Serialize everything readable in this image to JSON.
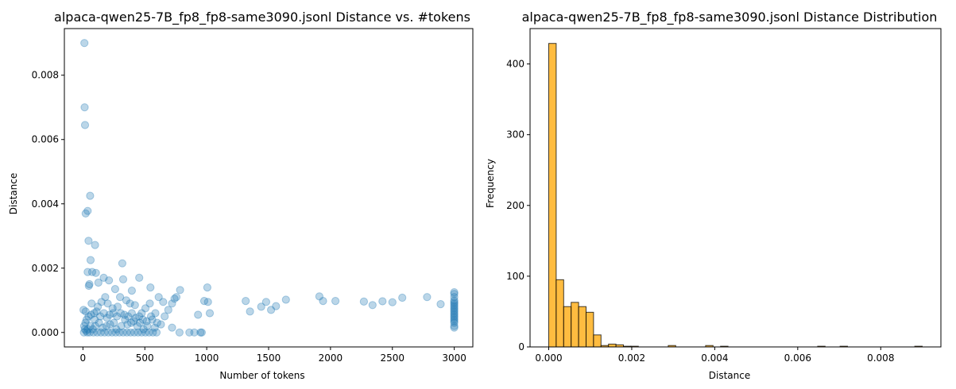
{
  "chart_data": [
    {
      "type": "scatter",
      "title": "alpaca-qwen25-7B_fp8_fp8-same3090.jsonl Distance vs. #tokens",
      "xlabel": "Number of tokens",
      "ylabel": "Distance",
      "xlim": [
        -150,
        3150
      ],
      "ylim": [
        -0.00045,
        0.00945
      ],
      "xticks": [
        0,
        500,
        1000,
        1500,
        2000,
        2500,
        3000
      ],
      "xtick_labels": [
        "0",
        "500",
        "1000",
        "1500",
        "2000",
        "2500",
        "3000"
      ],
      "yticks": [
        0,
        0.002,
        0.004,
        0.006,
        0.008
      ],
      "ytick_labels": [
        "0.000",
        "0.002",
        "0.004",
        "0.006",
        "0.008"
      ],
      "grid": false,
      "color": "#1f77b4",
      "points": [
        [
          12,
          0.009
        ],
        [
          14,
          0.007
        ],
        [
          17,
          0.00645
        ],
        [
          58,
          0.00425
        ],
        [
          22,
          0.0037
        ],
        [
          38,
          0.00378
        ],
        [
          45,
          0.00285
        ],
        [
          98,
          0.00272
        ],
        [
          62,
          0.00225
        ],
        [
          318,
          0.00215
        ],
        [
          38,
          0.00188
        ],
        [
          75,
          0.00188
        ],
        [
          105,
          0.00185
        ],
        [
          455,
          0.0017
        ],
        [
          168,
          0.0017
        ],
        [
          125,
          0.00155
        ],
        [
          325,
          0.00165
        ],
        [
          545,
          0.0014
        ],
        [
          1005,
          0.0014
        ],
        [
          210,
          0.00162
        ],
        [
          5,
          0.0007
        ],
        [
          22,
          0.00065
        ],
        [
          48,
          0.00145
        ],
        [
          52,
          0.0015
        ],
        [
          260,
          0.00135
        ],
        [
          395,
          0.0013
        ],
        [
          785,
          0.00132
        ],
        [
          755,
          0.0011
        ],
        [
          1010,
          0.00095
        ],
        [
          1025,
          0.0006
        ],
        [
          980,
          0.00098
        ],
        [
          612,
          0.0011
        ],
        [
          648,
          0.00095
        ],
        [
          720,
          0.0009
        ],
        [
          690,
          0.0007
        ],
        [
          740,
          0.00105
        ],
        [
          930,
          0.00055
        ],
        [
          1315,
          0.00098
        ],
        [
          1350,
          0.00065
        ],
        [
          1440,
          0.0008
        ],
        [
          1480,
          0.00095
        ],
        [
          1520,
          0.0007
        ],
        [
          1560,
          0.00082
        ],
        [
          1640,
          0.00102
        ],
        [
          1910,
          0.00112
        ],
        [
          1940,
          0.00098
        ],
        [
          2040,
          0.00098
        ],
        [
          2270,
          0.00096
        ],
        [
          2340,
          0.00085
        ],
        [
          2420,
          0.00097
        ],
        [
          2500,
          0.00094
        ],
        [
          2580,
          0.00108
        ],
        [
          2780,
          0.0011
        ],
        [
          2890,
          0.00088
        ],
        [
          720,
          0.00015
        ],
        [
          780,
          0.0
        ],
        [
          860,
          0.0
        ],
        [
          900,
          0.0
        ],
        [
          960,
          0.0
        ],
        [
          950,
          0.0
        ],
        [
          630,
          0.00025
        ],
        [
          540,
          0.0009
        ],
        [
          505,
          0.00075
        ],
        [
          475,
          0.0006
        ],
        [
          420,
          0.00085
        ],
        [
          380,
          0.0009
        ],
        [
          350,
          0.001
        ],
        [
          300,
          0.0011
        ],
        [
          280,
          0.0008
        ],
        [
          240,
          0.00075
        ],
        [
          200,
          0.0009
        ],
        [
          180,
          0.0011
        ],
        [
          150,
          0.00095
        ],
        [
          120,
          0.0008
        ],
        [
          90,
          0.0006
        ],
        [
          70,
          0.0009
        ],
        [
          30,
          0.0004
        ],
        [
          20,
          0.0003
        ],
        [
          10,
          0.0002
        ],
        [
          8,
          0.0
        ],
        [
          15,
          0.0001
        ],
        [
          25,
          5e-05
        ],
        [
          40,
          0.0001
        ],
        [
          60,
          0.0002
        ],
        [
          80,
          0.0001
        ],
        [
          100,
          0.0002
        ],
        [
          130,
          0.0003
        ],
        [
          160,
          0.00015
        ],
        [
          190,
          0.0002
        ],
        [
          220,
          0.00025
        ],
        [
          250,
          0.0003
        ],
        [
          270,
          0.0001
        ],
        [
          310,
          0.0002
        ],
        [
          340,
          0.0004
        ],
        [
          360,
          0.00025
        ],
        [
          390,
          0.0003
        ],
        [
          410,
          0.00035
        ],
        [
          440,
          0.0002
        ],
        [
          460,
          0.0003
        ],
        [
          490,
          0.0001
        ],
        [
          520,
          0.0002
        ],
        [
          560,
          0.0004
        ],
        [
          580,
          0.00015
        ],
        [
          600,
          0.0003
        ],
        [
          660,
          0.0005
        ],
        [
          35,
          0.0
        ],
        [
          55,
          0.0
        ],
        [
          85,
          0.0
        ],
        [
          115,
          0.0
        ],
        [
          145,
          0.0
        ],
        [
          175,
          0.0
        ],
        [
          205,
          0.0
        ],
        [
          235,
          0.0
        ],
        [
          265,
          0.0
        ],
        [
          295,
          0.0
        ],
        [
          325,
          0.0
        ],
        [
          355,
          0.0
        ],
        [
          385,
          0.0
        ],
        [
          415,
          0.0
        ],
        [
          445,
          0.0
        ],
        [
          475,
          0.0
        ],
        [
          505,
          0.0
        ],
        [
          535,
          0.0
        ],
        [
          565,
          0.0
        ],
        [
          595,
          0.0
        ],
        [
          45,
          0.0005
        ],
        [
          65,
          0.00055
        ],
        [
          95,
          0.0004
        ],
        [
          110,
          0.00065
        ],
        [
          140,
          0.0005
        ],
        [
          170,
          0.0006
        ],
        [
          195,
          0.00045
        ],
        [
          215,
          0.00055
        ],
        [
          245,
          0.0006
        ],
        [
          275,
          0.0005
        ],
        [
          305,
          0.0006
        ],
        [
          335,
          0.00055
        ],
        [
          365,
          0.0005
        ],
        [
          395,
          0.0006
        ],
        [
          425,
          0.00045
        ],
        [
          455,
          0.0005
        ],
        [
          485,
          0.0004
        ],
        [
          515,
          0.00035
        ],
        [
          550,
          0.0005
        ],
        [
          585,
          0.0006
        ],
        [
          3000,
          0.00125
        ],
        [
          3000,
          0.0012
        ],
        [
          3000,
          0.0011
        ],
        [
          3000,
          0.001
        ],
        [
          3000,
          0.0009
        ],
        [
          3000,
          0.0008
        ],
        [
          3000,
          0.0007
        ],
        [
          3000,
          0.0006
        ],
        [
          3000,
          0.0005
        ],
        [
          3000,
          0.0004
        ],
        [
          3000,
          0.0003
        ],
        [
          3000,
          0.0002
        ],
        [
          3000,
          0.00015
        ],
        [
          3000,
          0.00095
        ],
        [
          3000,
          0.00085
        ],
        [
          3000,
          0.00075
        ],
        [
          3000,
          0.00065
        ],
        [
          3000,
          0.00055
        ],
        [
          3000,
          0.00045
        ],
        [
          3000,
          0.00035
        ]
      ]
    },
    {
      "type": "histogram",
      "title": "alpaca-qwen25-7B_fp8_fp8-same3090.jsonl Distance Distribution",
      "xlabel": "Distance",
      "ylabel": "Frequency",
      "xlim": [
        -0.00045,
        0.00945
      ],
      "ylim": [
        0,
        450
      ],
      "xticks": [
        0,
        0.002,
        0.004,
        0.006,
        0.008
      ],
      "xtick_labels": [
        "0.000",
        "0.002",
        "0.004",
        "0.006",
        "0.008"
      ],
      "yticks": [
        0,
        100,
        200,
        300,
        400
      ],
      "ytick_labels": [
        "0",
        "100",
        "200",
        "300",
        "400"
      ],
      "grid": false,
      "color": "#ffa500",
      "bin_start": 0,
      "bin_width": 0.00018,
      "counts": [
        429,
        95,
        57,
        63,
        57,
        49,
        17,
        2,
        4,
        3,
        1,
        1,
        0,
        0,
        0,
        0,
        2,
        0,
        0,
        0,
        0,
        2,
        0,
        1,
        0,
        0,
        0,
        0,
        0,
        0,
        0,
        0,
        0,
        0,
        0,
        0,
        1,
        0,
        0,
        1,
        0,
        0,
        0,
        0,
        0,
        0,
        0,
        0,
        0,
        1
      ]
    }
  ]
}
